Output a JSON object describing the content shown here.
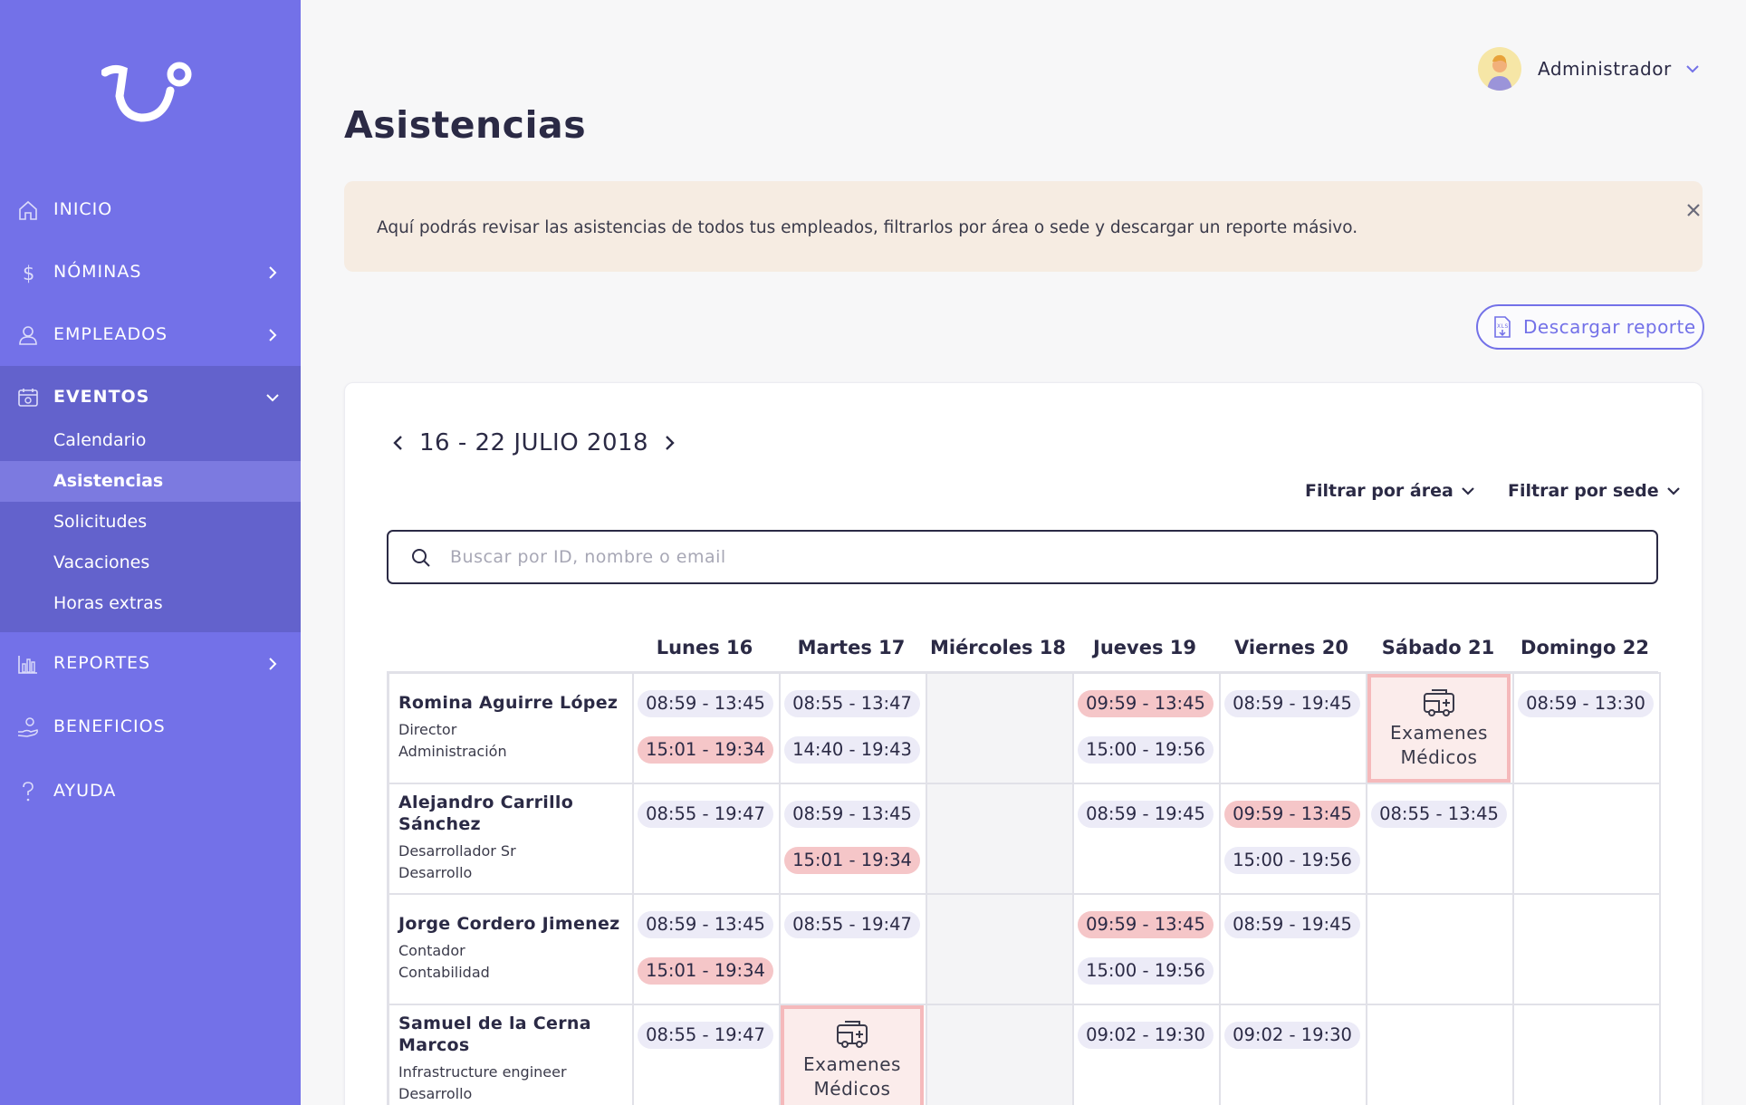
{
  "sidebar": {
    "logo_icon": "brand-logo-icon",
    "items": [
      {
        "label": "INICIO",
        "icon": "home-icon"
      },
      {
        "label": "NÓMINAS",
        "icon": "dollar-icon"
      },
      {
        "label": "EMPLEADOS",
        "icon": "user-icon"
      },
      {
        "label": "EVENTOS",
        "icon": "calendar-icon"
      },
      {
        "label": "REPORTES",
        "icon": "bar-chart-icon"
      },
      {
        "label": "BENEFICIOS",
        "icon": "hand-heart-icon"
      },
      {
        "label": "AYUDA",
        "icon": "question-icon"
      }
    ],
    "events_sub": [
      "Calendario",
      "Asistencias",
      "Solicitudes",
      "Vacaciones",
      "Horas extras"
    ],
    "active_sub": "Asistencias"
  },
  "header": {
    "title": "Asistencias",
    "user_name": "Administrador"
  },
  "banner": {
    "text": "Aquí podrás revisar las asistencias de todos tus empleados, filtrarlos por área o sede y descargar un reporte másivo."
  },
  "toolbar": {
    "download_label": "Descargar reporte"
  },
  "week": {
    "range": "16 - 22 JULIO 2018",
    "filter_area": "Filtrar por área",
    "filter_sede": "Filtrar por sede",
    "search_placeholder": "Buscar por ID, nombre o email",
    "days": [
      "Lunes 16",
      "Martes 17",
      "Miércoles 18",
      "Jueves 19",
      "Viernes 20",
      "Sábado 21",
      "Domingo 22"
    ]
  },
  "medical_label": {
    "line1": "Examenes",
    "line2": "Médicos"
  },
  "colors": {
    "sidebar": "#7371e8",
    "sidebar_active": "#6362cc",
    "pill": "#ecebf7",
    "pill_late": "#f5c6c8",
    "medical_border": "#f5b9bb",
    "banner": "#f6ece2"
  },
  "employees": [
    {
      "name": "Romina Aguirre López",
      "role": "Director",
      "area": "Administración",
      "shifts": {
        "mon": [
          "08:59 - 13:45",
          "15:01 - 19:34"
        ],
        "tue": [
          "08:55 - 13:47",
          "14:40 - 19:43"
        ],
        "thu": [
          "09:59 - 13:45",
          "15:00 - 19:56"
        ],
        "fri": [
          "08:59 - 19:45"
        ],
        "sat": "medical",
        "sun": [
          "08:59 - 13:30"
        ]
      },
      "late": [
        "mon.1",
        "thu.0"
      ]
    },
    {
      "name": "Alejandro Carrillo Sánchez",
      "role": "Desarrollador Sr",
      "area": "Desarrollo",
      "shifts": {
        "mon": [
          "08:55 - 19:47"
        ],
        "tue": [
          "08:59 - 13:45",
          "15:01 - 19:34"
        ],
        "thu": [
          "08:59 - 19:45"
        ],
        "fri": [
          "09:59 - 13:45",
          "15:00 - 19:56"
        ],
        "sat": [
          "08:55 - 13:45"
        ]
      },
      "late": [
        "tue.1",
        "fri.0"
      ]
    },
    {
      "name": "Jorge Cordero Jimenez",
      "role": "Contador",
      "area": "Contabilidad",
      "shifts": {
        "mon": [
          "08:59 - 13:45",
          "15:01 - 19:34"
        ],
        "tue": [
          "08:55 - 19:47"
        ],
        "thu": [
          "09:59 - 13:45",
          "15:00 - 19:56"
        ],
        "fri": [
          "08:59 - 19:45"
        ]
      },
      "late": [
        "mon.1",
        "thu.0"
      ]
    },
    {
      "name": "Samuel de la Cerna Marcos",
      "role": "Infrastructure engineer",
      "area": "Desarrollo",
      "shifts": {
        "mon": [
          "08:55 - 19:47"
        ],
        "tue": "medical",
        "thu": [
          "09:02 - 19:30"
        ],
        "fri": [
          "09:02 - 19:30"
        ]
      },
      "late": []
    }
  ]
}
